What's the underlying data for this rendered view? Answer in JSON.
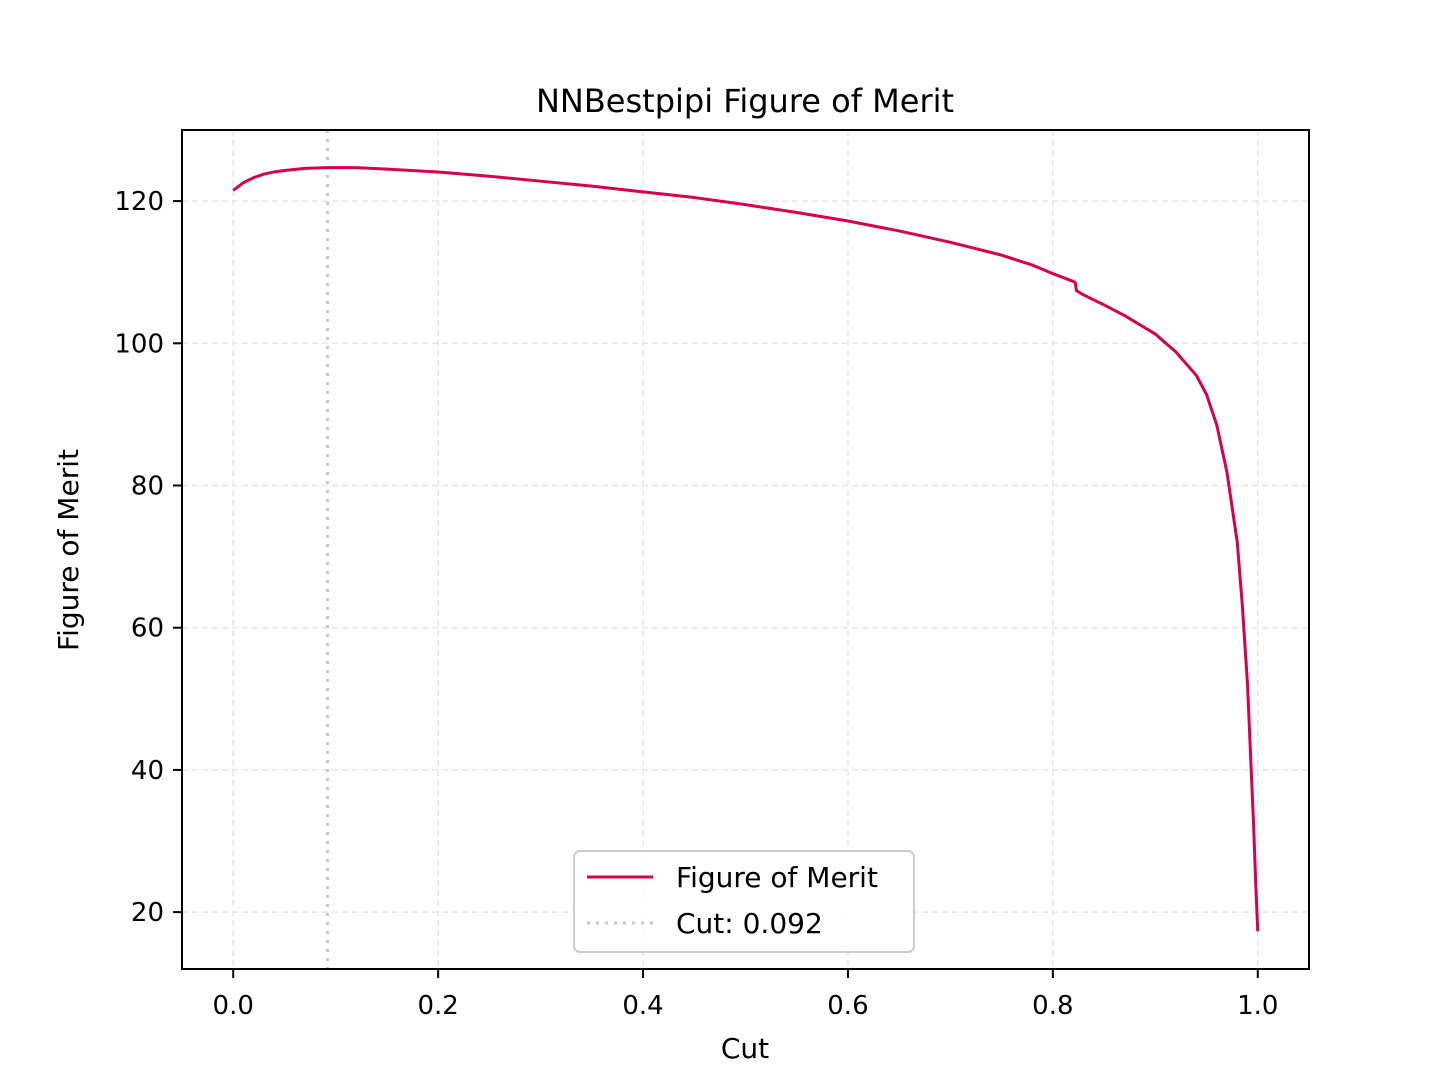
{
  "chart_data": {
    "type": "line",
    "title": "NNBestpipi Figure of Merit",
    "xlabel": "Cut",
    "ylabel": "Figure of Merit",
    "xlim": [
      -0.05,
      1.05
    ],
    "ylim": [
      12,
      130
    ],
    "xticks": [
      0.0,
      0.2,
      0.4,
      0.6,
      0.8,
      1.0
    ],
    "xtick_labels": [
      "0.0",
      "0.2",
      "0.4",
      "0.6",
      "0.8",
      "1.0"
    ],
    "yticks": [
      20,
      40,
      60,
      80,
      100,
      120
    ],
    "ytick_labels": [
      "20",
      "40",
      "60",
      "80",
      "100",
      "120"
    ],
    "grid": true,
    "legend_position": "bottom-center",
    "series": [
      {
        "name": "Figure of Merit",
        "color": "#d6004d",
        "style": "solid",
        "x": [
          0.0,
          0.01,
          0.02,
          0.03,
          0.04,
          0.05,
          0.07,
          0.092,
          0.12,
          0.15,
          0.2,
          0.25,
          0.3,
          0.35,
          0.4,
          0.45,
          0.5,
          0.55,
          0.6,
          0.65,
          0.7,
          0.75,
          0.78,
          0.8,
          0.82,
          0.822,
          0.823,
          0.83,
          0.85,
          0.87,
          0.9,
          0.92,
          0.94,
          0.95,
          0.96,
          0.97,
          0.98,
          0.985,
          0.99,
          0.993,
          0.996,
          0.998,
          1.0
        ],
        "y": [
          121.5,
          122.6,
          123.3,
          123.8,
          124.1,
          124.3,
          124.6,
          124.7,
          124.7,
          124.5,
          124.1,
          123.5,
          122.8,
          122.1,
          121.3,
          120.5,
          119.5,
          118.4,
          117.2,
          115.8,
          114.2,
          112.4,
          111.0,
          109.8,
          108.7,
          108.5,
          107.4,
          106.8,
          105.4,
          103.9,
          101.3,
          98.8,
          95.5,
          92.8,
          88.5,
          81.8,
          72.0,
          63.0,
          52.0,
          42.0,
          32.0,
          24.0,
          17.3
        ]
      },
      {
        "name": "Cut: 0.092",
        "color": "#c8c8c8",
        "style": "dotted",
        "x_value": 0.092
      }
    ]
  }
}
